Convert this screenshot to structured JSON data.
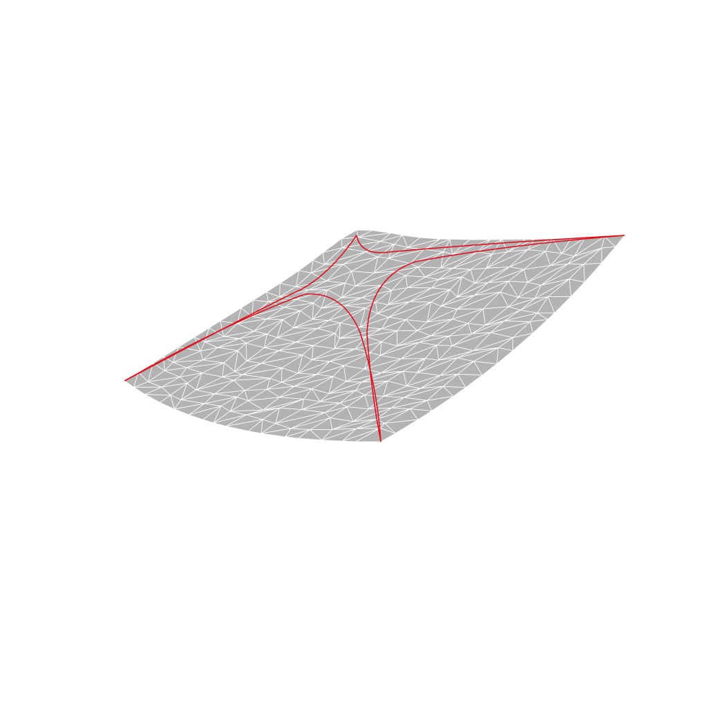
{
  "scene": {
    "background_color": "#ffffff",
    "surface_fill": "#b3b3b3",
    "mesh_stroke": "#ffffff",
    "seam_color": "#e0101c",
    "mesh_density": 16,
    "seam_count": 4
  }
}
